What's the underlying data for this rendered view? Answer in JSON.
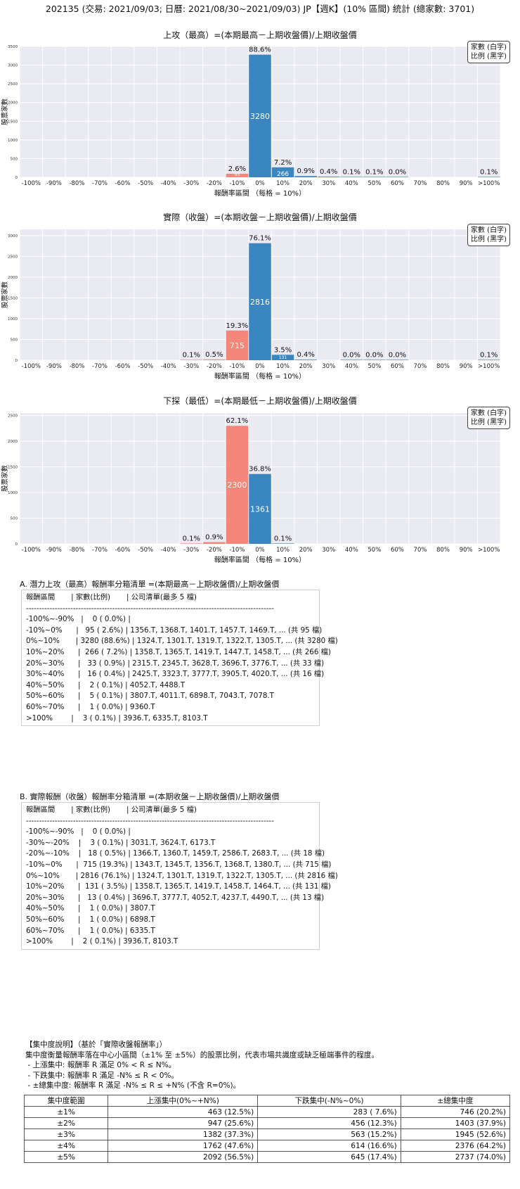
{
  "header": {
    "title": "202135 (交易: 2021/09/03; 日曆: 2021/08/30~2021/09/03) JP【週K】(10% 區間) 統計 (總家數: 3701)"
  },
  "legend": {
    "line1": "家數 (白字)",
    "line2": "比例 (黑字)"
  },
  "colors": {
    "positive": "#3a86c0",
    "negative": "#f4867a",
    "plot_bg": "#eaeaf2",
    "grid": "#ffffff"
  },
  "chart_data": [
    {
      "type": "bar",
      "title": "上攻（最高）=(本期最高－上期收盤價)/上期收盤價",
      "xlabel": "報酬率區間 （每格 = 10%）",
      "ylabel": "股票家數",
      "categories": [
        "-100%",
        "-90%",
        "-80%",
        "-70%",
        "-60%",
        "-50%",
        "-40%",
        "-30%",
        "-20%",
        "-10%",
        "0%",
        "10%",
        "20%",
        "30%",
        "40%",
        "50%",
        "60%",
        "70%",
        "80%",
        "90%",
        ">100%"
      ],
      "ylim": [
        0,
        3500
      ],
      "yticks": [
        0,
        500,
        1000,
        1500,
        2000,
        2500,
        3000,
        3500
      ],
      "bars": [
        {
          "index": 9,
          "count": 95,
          "pct": "2.6%",
          "count_label": "95"
        },
        {
          "index": 10,
          "count": 3280,
          "pct": "88.6%",
          "count_label": "3280"
        },
        {
          "index": 11,
          "count": 266,
          "pct": "7.2%",
          "count_label": "266"
        },
        {
          "index": 12,
          "count": 33,
          "pct": "0.9%",
          "count_label": ""
        },
        {
          "index": 13,
          "count": 16,
          "pct": "0.4%",
          "count_label": ""
        },
        {
          "index": 14,
          "count": 2,
          "pct": "0.1%",
          "count_label": ""
        },
        {
          "index": 15,
          "count": 5,
          "pct": "0.1%",
          "count_label": ""
        },
        {
          "index": 16,
          "count": 1,
          "pct": "0.0%",
          "count_label": ""
        },
        {
          "index": 20,
          "count": 3,
          "pct": "0.1%",
          "count_label": ""
        }
      ]
    },
    {
      "type": "bar",
      "title": "實際（收盤）=(本期收盤－上期收盤價)/上期收盤價",
      "xlabel": "報酬率區間 （每格 = 10%）",
      "ylabel": "股票家數",
      "categories": [
        "-100%",
        "-90%",
        "-80%",
        "-70%",
        "-60%",
        "-50%",
        "-40%",
        "-30%",
        "-20%",
        "-10%",
        "0%",
        "10%",
        "20%",
        "30%",
        "40%",
        "50%",
        "60%",
        "70%",
        "80%",
        "90%",
        ">100%"
      ],
      "ylim": [
        0,
        3150
      ],
      "yticks": [
        0,
        500,
        1000,
        1500,
        2000,
        2500,
        3000
      ],
      "bars": [
        {
          "index": 7,
          "count": 3,
          "pct": "0.1%",
          "count_label": ""
        },
        {
          "index": 8,
          "count": 18,
          "pct": "0.5%",
          "count_label": ""
        },
        {
          "index": 9,
          "count": 715,
          "pct": "19.3%",
          "count_label": "715"
        },
        {
          "index": 10,
          "count": 2816,
          "pct": "76.1%",
          "count_label": "2816"
        },
        {
          "index": 11,
          "count": 131,
          "pct": "3.5%",
          "count_label": "131"
        },
        {
          "index": 12,
          "count": 13,
          "pct": "0.4%",
          "count_label": ""
        },
        {
          "index": 14,
          "count": 1,
          "pct": "0.0%",
          "count_label": ""
        },
        {
          "index": 15,
          "count": 1,
          "pct": "0.0%",
          "count_label": ""
        },
        {
          "index": 16,
          "count": 1,
          "pct": "0.0%",
          "count_label": ""
        },
        {
          "index": 20,
          "count": 2,
          "pct": "0.1%",
          "count_label": ""
        }
      ]
    },
    {
      "type": "bar",
      "title": "下探（最低）=(本期最低－上期收盤價)/上期收盤價",
      "xlabel": "報酬率區間 （每格 = 10%）",
      "ylabel": "股票家數",
      "categories": [
        "-100%",
        "-90%",
        "-80%",
        "-70%",
        "-60%",
        "-50%",
        "-40%",
        "-30%",
        "-20%",
        "-10%",
        "0%",
        "10%",
        "20%",
        "30%",
        "40%",
        "50%",
        "60%",
        "70%",
        "80%",
        "90%",
        ">100%"
      ],
      "ylim": [
        0,
        2550
      ],
      "yticks": [
        0,
        500,
        1000,
        1500,
        2000,
        2500
      ],
      "bars": [
        {
          "index": 7,
          "count": 3,
          "pct": "0.1%",
          "count_label": ""
        },
        {
          "index": 8,
          "count": 34,
          "pct": "0.9%",
          "count_label": ""
        },
        {
          "index": 9,
          "count": 2300,
          "pct": "62.1%",
          "count_label": "2300"
        },
        {
          "index": 10,
          "count": 1361,
          "pct": "36.8%",
          "count_label": "1361"
        },
        {
          "index": 11,
          "count": 3,
          "pct": "0.1%",
          "count_label": ""
        }
      ]
    }
  ],
  "sectionA": {
    "title": "A. 潛力上攻（最高）報酬率分箱清單 =(本期最高－上期收盤價)/上期收盤價",
    "lines": [
      "報酬區間       | 家數(比例)       | 公司清單(最多 5 檔)",
      "-----------------------------------------------------------------------------------------------",
      "-100%~-90%   |    0 ( 0.0%) |",
      "-10%~0%      |   95 ( 2.6%) | 1356.T, 1368.T, 1401.T, 1457.T, 1469.T, ... (共 95 檔)",
      "0%~10%       | 3280 (88.6%) | 1324.T, 1301.T, 1319.T, 1322.T, 1305.T, ... (共 3280 檔)",
      "10%~20%      |  266 ( 7.2%) | 1358.T, 1365.T, 1419.T, 1447.T, 1458.T, ... (共 266 檔)",
      "20%~30%      |   33 ( 0.9%) | 2315.T, 2345.T, 3628.T, 3696.T, 3776.T, ... (共 33 檔)",
      "30%~40%      |   16 ( 0.4%) | 2425.T, 3323.T, 3777.T, 3905.T, 4020.T, ... (共 16 檔)",
      "40%~50%      |    2 ( 0.1%) | 4052.T, 4488.T",
      "50%~60%      |    5 ( 0.1%) | 3807.T, 4011.T, 6898.T, 7043.T, 7078.T",
      "60%~70%      |    1 ( 0.0%) | 9360.T",
      ">100%        |    3 ( 0.1%) | 3936.T, 6335.T, 8103.T"
    ]
  },
  "sectionB": {
    "title": "B. 實際報酬（收盤）報酬率分箱清單 =(本期收盤－上期收盤價)/上期收盤價",
    "lines": [
      "報酬區間       | 家數(比例)       | 公司清單(最多 5 檔)",
      "-----------------------------------------------------------------------------------------------",
      "-100%~-90%   |    0 ( 0.0%) |",
      "-30%~-20%    |    3 ( 0.1%) | 3031.T, 3624.T, 6173.T",
      "-20%~-10%    |   18 ( 0.5%) | 1366.T, 1360.T, 1459.T, 2586.T, 2683.T, ... (共 18 檔)",
      "-10%~0%      |  715 (19.3%) | 1343.T, 1345.T, 1356.T, 1368.T, 1380.T, ... (共 715 檔)",
      "0%~10%       | 2816 (76.1%) | 1324.T, 1301.T, 1319.T, 1322.T, 1305.T, ... (共 2816 檔)",
      "10%~20%      |  131 ( 3.5%) | 1358.T, 1365.T, 1419.T, 1458.T, 1464.T, ... (共 131 檔)",
      "20%~30%      |   13 ( 0.4%) | 3696.T, 3777.T, 4052.T, 4237.T, 4490.T, ... (共 13 檔)",
      "40%~50%      |    1 ( 0.0%) | 3807.T",
      "50%~60%      |    1 ( 0.0%) | 6898.T",
      "60%~70%      |    1 ( 0.0%) | 6335.T",
      ">100%        |    2 ( 0.1%) | 3936.T, 8103.T"
    ]
  },
  "notes": {
    "lines": [
      "【集中度說明】（基於「實際收盤報酬率」）",
      "集中度衡量報酬率落在中心小區間（±1% 至 ±5%）的股票比例，代表市場共識度或缺乏極端事件的程度。",
      " - 上漲集中: 報酬率 R 滿足 0% < R ≤ N%。",
      " - 下跌集中: 報酬率 R 滿足 -N% ≤ R < 0%。",
      " - ±總集中度: 報酬率 R 滿足 -N% ≤ R ≤ +N% (不含 R=0%)。"
    ]
  },
  "concentration": {
    "headers": [
      "集中度範圍",
      "上漲集中(0%~+N%)",
      "下跌集中(-N%~0%)",
      "±總集中度"
    ],
    "rows": [
      [
        "±1%",
        "463 (12.5%)",
        "283 ( 7.6%)",
        "746 (20.2%)"
      ],
      [
        "±2%",
        "947 (25.6%)",
        "456 (12.3%)",
        "1403 (37.9%)"
      ],
      [
        "±3%",
        "1382 (37.3%)",
        "563 (15.2%)",
        "1945 (52.6%)"
      ],
      [
        "±4%",
        "1762 (47.6%)",
        "614 (16.6%)",
        "2376 (64.2%)"
      ],
      [
        "±5%",
        "2092 (56.5%)",
        "645 (17.4%)",
        "2737 (74.0%)"
      ]
    ]
  }
}
